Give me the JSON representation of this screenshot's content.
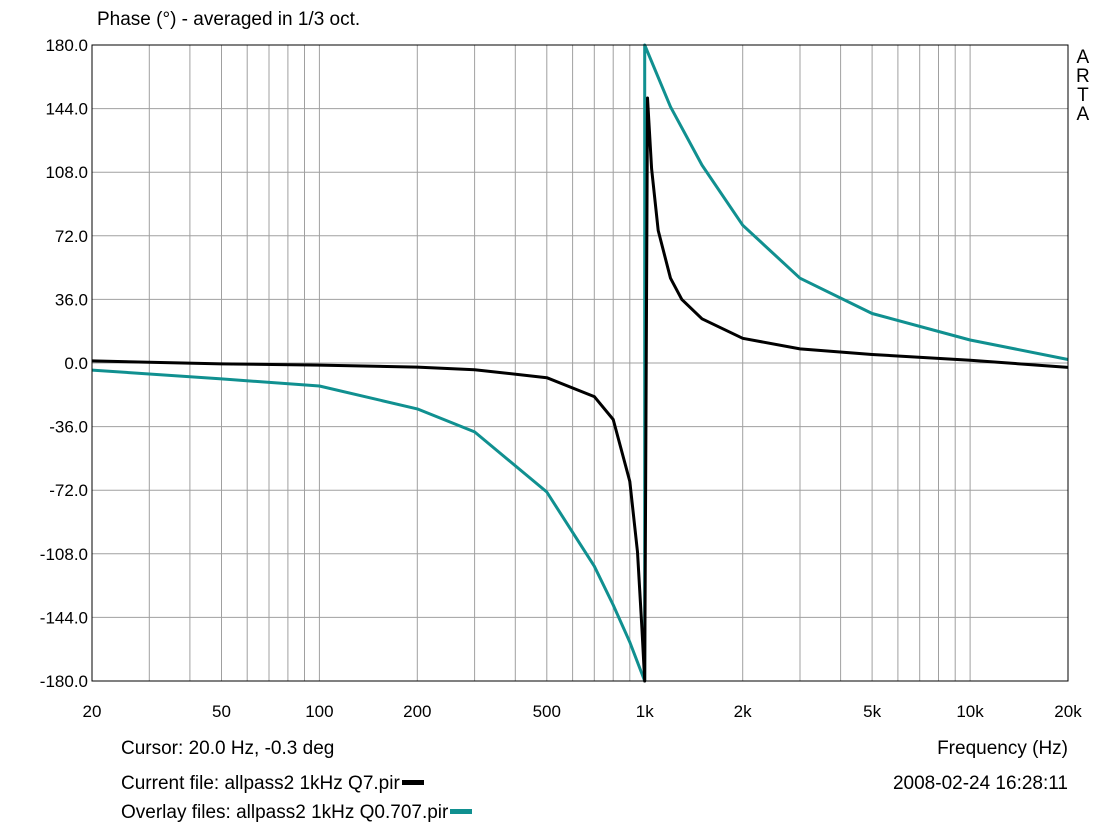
{
  "chart_data": {
    "type": "line",
    "title": "Phase (°) - averaged in 1/3 oct.",
    "xlabel": "Frequency (Hz)",
    "x_scale": "log",
    "xlim": [
      20,
      20000
    ],
    "ylim": [
      -180,
      180
    ],
    "x_ticks": [
      20,
      50,
      100,
      200,
      500,
      1000,
      2000,
      5000,
      10000,
      20000
    ],
    "x_tick_labels": [
      "20",
      "50",
      "100",
      "200",
      "500",
      "1k",
      "2k",
      "5k",
      "10k",
      "20k"
    ],
    "y_ticks": [
      180,
      144,
      108,
      72,
      36,
      0,
      -36,
      -72,
      -108,
      -144,
      -180
    ],
    "y_tick_labels": [
      "180.0",
      "144.0",
      "108.0",
      "72.0",
      "36.0",
      "0.0",
      "-36.0",
      "-72.0",
      "-108.0",
      "-144.0",
      "-180.0"
    ],
    "grid": true,
    "series": [
      {
        "color": "#000000",
        "x": [
          20,
          50,
          100,
          200,
          300,
          500,
          700,
          800,
          900,
          950,
          980,
          1000,
          1020,
          1050,
          1100,
          1200,
          1300,
          1500,
          2000,
          3000,
          5000,
          10000,
          20000
        ],
        "y": [
          1.2,
          -0.5,
          -1.2,
          -2.3,
          -3.8,
          -8.3,
          -19.0,
          -32.0,
          -67.0,
          -107.0,
          -150.0,
          -180.0,
          150.0,
          110.0,
          75.0,
          48.0,
          36.0,
          25.0,
          14.0,
          8.0,
          4.8,
          1.6,
          -2.5
        ]
      },
      {
        "color": "#109090",
        "x": [
          20,
          50,
          100,
          200,
          300,
          500,
          700,
          800,
          900,
          1000,
          1000,
          1200,
          1500,
          2000,
          3000,
          5000,
          10000,
          20000
        ],
        "y": [
          -4.0,
          -9.0,
          -13.0,
          -26.0,
          -39.0,
          -73.0,
          -115.0,
          -137.0,
          -158.0,
          -180.0,
          180.0,
          145.0,
          112.0,
          78.0,
          48.0,
          28.0,
          13.0,
          2.0
        ]
      }
    ]
  },
  "ui": {
    "arta_logo": [
      "A",
      "R",
      "T",
      "A"
    ],
    "cursor": "Cursor: 20.0 Hz, -0.3 deg",
    "current_file": "Current file: allpass2 1kHz Q7.pir",
    "overlay_files": "Overlay files: allpass2 1kHz Q0.707.pir",
    "timestamp": "2008-02-24  16:28:11"
  }
}
